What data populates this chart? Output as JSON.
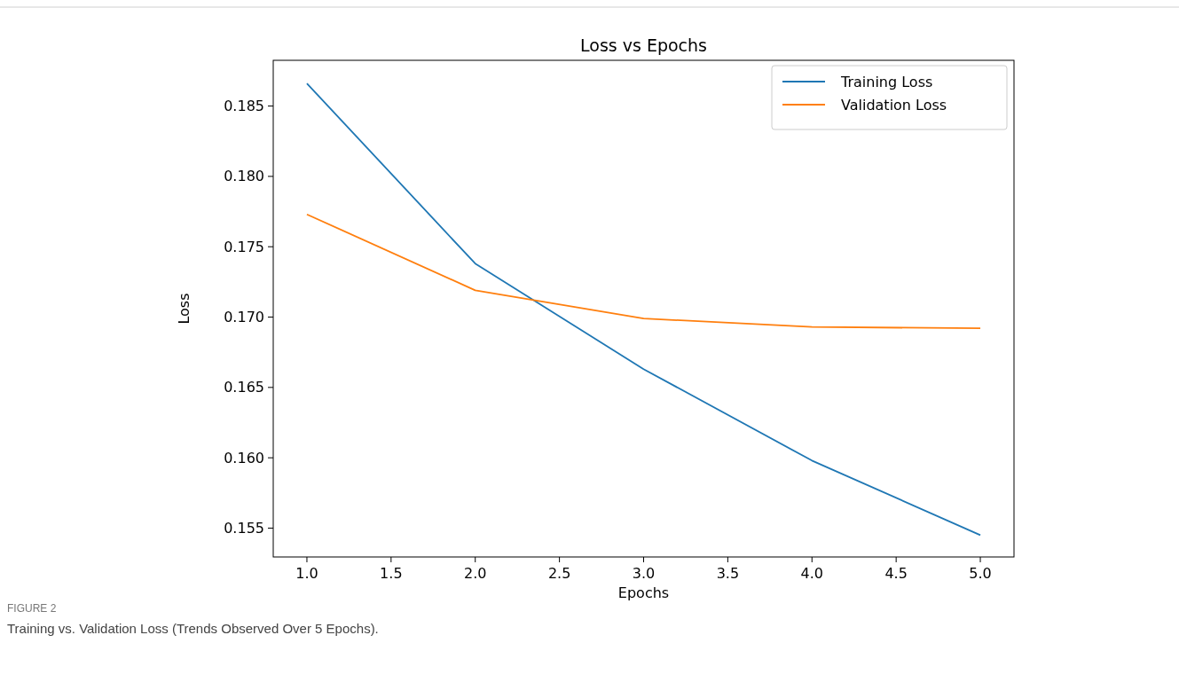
{
  "chart_data": {
    "type": "line",
    "title": "Loss vs Epochs",
    "xlabel": "Epochs",
    "ylabel": "Loss",
    "x": [
      1,
      2,
      3,
      4,
      5
    ],
    "series": [
      {
        "name": "Training Loss",
        "color": "#1f77b4",
        "values": [
          0.1866,
          0.1738,
          0.1663,
          0.1598,
          0.1545
        ]
      },
      {
        "name": "Validation Loss",
        "color": "#ff7f0e",
        "values": [
          0.1773,
          0.1719,
          0.1699,
          0.1693,
          0.1692
        ]
      }
    ],
    "xlim": [
      0.8,
      5.2
    ],
    "xticks": [
      {
        "value": 1,
        "label": "1.0"
      },
      {
        "value": 1.5,
        "label": "1.5"
      },
      {
        "value": 2,
        "label": "2.0"
      },
      {
        "value": 2.5,
        "label": "2.5"
      },
      {
        "value": 3,
        "label": "3.0"
      },
      {
        "value": 3.5,
        "label": "3.5"
      },
      {
        "value": 4,
        "label": "4.0"
      },
      {
        "value": 4.5,
        "label": "4.5"
      },
      {
        "value": 5,
        "label": "5.0"
      }
    ],
    "ylim": [
      0.15295,
      0.18825
    ],
    "yticks": [
      {
        "value": 0.155,
        "label": "0.155"
      },
      {
        "value": 0.16,
        "label": "0.160"
      },
      {
        "value": 0.165,
        "label": "0.165"
      },
      {
        "value": 0.17,
        "label": "0.170"
      },
      {
        "value": 0.175,
        "label": "0.175"
      },
      {
        "value": 0.18,
        "label": "0.180"
      },
      {
        "value": 0.185,
        "label": "0.185"
      }
    ],
    "legend": "top right",
    "grid": false,
    "marker": "none",
    "line_style": "solid",
    "annotations": [
      "FIGURE 2",
      "Training vs. Validation Loss (Trends Observed Over 5 Epochs)."
    ]
  }
}
